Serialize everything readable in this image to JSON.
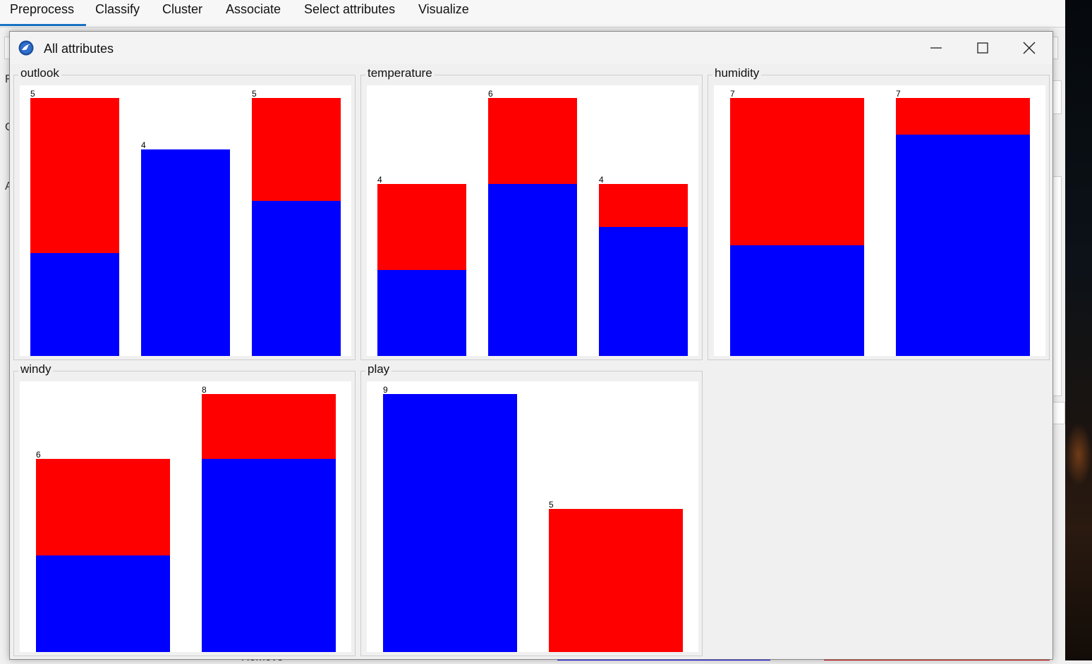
{
  "tabs": [
    {
      "label": "Preprocess",
      "active": true
    },
    {
      "label": "Classify",
      "active": false
    },
    {
      "label": "Cluster",
      "active": false
    },
    {
      "label": "Associate",
      "active": false
    },
    {
      "label": "Select attributes",
      "active": false
    },
    {
      "label": "Visualize",
      "active": false
    }
  ],
  "background": {
    "partial_letters": [
      "F",
      "C",
      "A"
    ],
    "remove_button": "Remove"
  },
  "dialog": {
    "title": "All attributes",
    "icon": "weka-bird-icon",
    "controls": [
      "minimize-icon",
      "maximize-icon",
      "close-icon"
    ]
  },
  "colors": {
    "class_yes": "#0000ff",
    "class_no": "#ff0000"
  },
  "chart_data": [
    {
      "type": "bar",
      "title": "outlook",
      "stacked": true,
      "ymax": 5,
      "totals": [
        5,
        4,
        5
      ],
      "series": [
        {
          "color": "#0000ff",
          "values": [
            2,
            4,
            3
          ]
        },
        {
          "color": "#ff0000",
          "values": [
            3,
            0,
            2
          ]
        }
      ]
    },
    {
      "type": "bar",
      "title": "temperature",
      "stacked": true,
      "ymax": 6,
      "totals": [
        4,
        6,
        4
      ],
      "series": [
        {
          "color": "#0000ff",
          "values": [
            2,
            4,
            3
          ]
        },
        {
          "color": "#ff0000",
          "values": [
            2,
            2,
            1
          ]
        }
      ]
    },
    {
      "type": "bar",
      "title": "humidity",
      "stacked": true,
      "ymax": 7,
      "totals": [
        7,
        7
      ],
      "series": [
        {
          "color": "#0000ff",
          "values": [
            3,
            6
          ]
        },
        {
          "color": "#ff0000",
          "values": [
            4,
            1
          ]
        }
      ]
    },
    {
      "type": "bar",
      "title": "windy",
      "stacked": true,
      "ymax": 8,
      "totals": [
        6,
        8
      ],
      "series": [
        {
          "color": "#0000ff",
          "values": [
            3,
            6
          ]
        },
        {
          "color": "#ff0000",
          "values": [
            3,
            2
          ]
        }
      ]
    },
    {
      "type": "bar",
      "title": "play",
      "stacked": true,
      "ymax": 9,
      "totals": [
        9,
        5
      ],
      "series": [
        {
          "color": "#0000ff",
          "values": [
            9,
            0
          ]
        },
        {
          "color": "#ff0000",
          "values": [
            0,
            5
          ]
        }
      ]
    }
  ]
}
